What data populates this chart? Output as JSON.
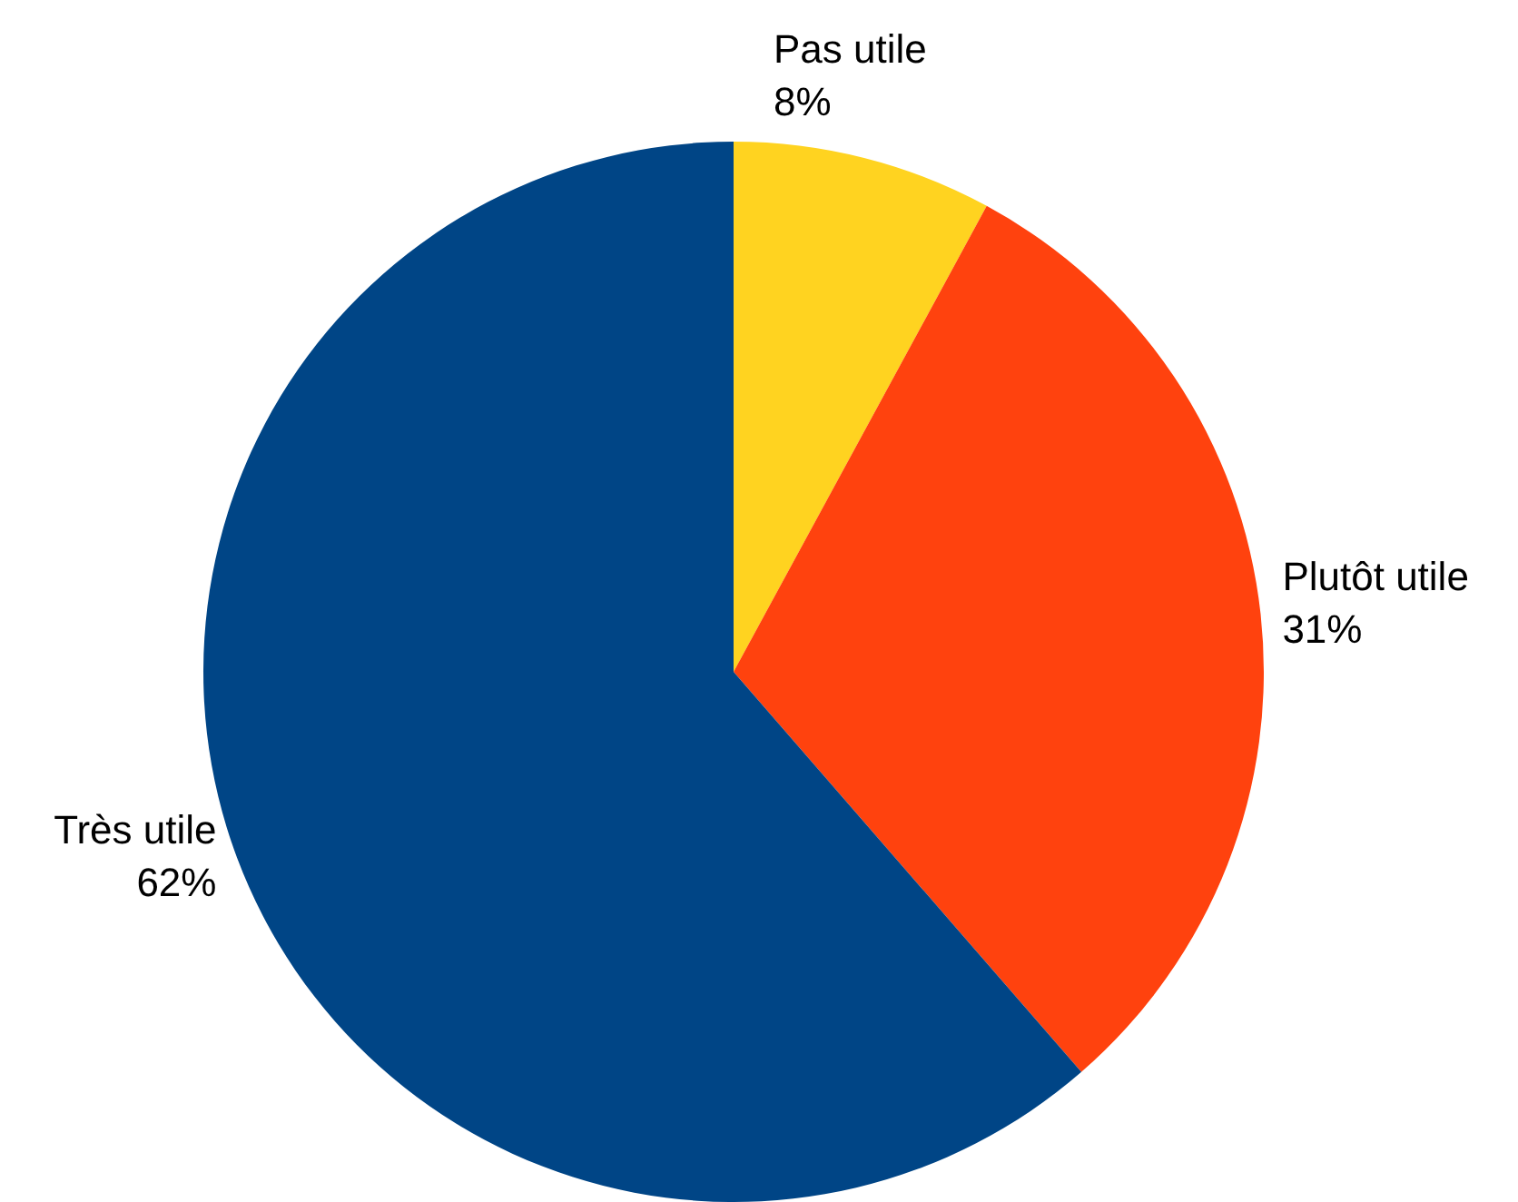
{
  "chart_data": {
    "type": "pie",
    "categories": [
      "Pas utile",
      "Plutôt utile",
      "Très utile"
    ],
    "values": [
      8,
      31,
      62
    ],
    "colors": [
      "#ffd320",
      "#ff420e",
      "#004586"
    ],
    "value_labels": [
      "8%",
      "31%",
      "62%"
    ],
    "legend": false
  }
}
